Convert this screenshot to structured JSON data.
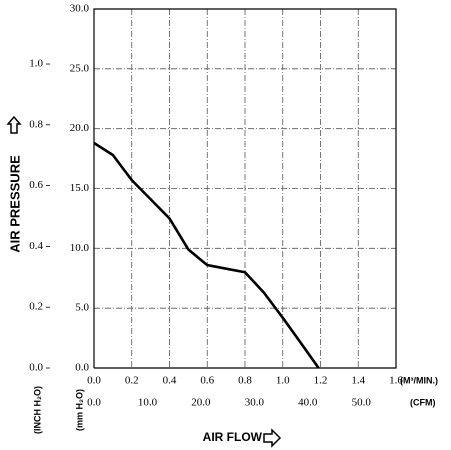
{
  "chart_data": {
    "type": "line",
    "y_label": "AIR PRESSURE",
    "y_unit": "(mm H₂O)",
    "y2_unit": "(INCH H₂O)",
    "x_label": "AIR FLOW",
    "x_unit": "(M³/MIN.)",
    "x2_unit": "(CFM)",
    "x": [
      0,
      0.1,
      0.2,
      0.3,
      0.4,
      0.5,
      0.6,
      0.7,
      0.8,
      0.9,
      1.0,
      1.1,
      1.19
    ],
    "values": [
      18.8,
      17.8,
      15.7,
      14.1,
      12.5,
      9.9,
      8.6,
      8.3,
      8.0,
      6.3,
      4.2,
      2.0,
      0
    ],
    "color": "#000000",
    "grid": true,
    "xlim": [
      0,
      1.6
    ],
    "xticks": [
      {
        "value": 0,
        "label": "0.0"
      },
      {
        "value": 0.2,
        "label": "0.2"
      },
      {
        "value": 0.4,
        "label": "0.4"
      },
      {
        "value": 0.6,
        "label": "0.6"
      },
      {
        "value": 0.8,
        "label": "0.8"
      },
      {
        "value": 1.0,
        "label": "1.0"
      },
      {
        "value": 1.2,
        "label": "1.2"
      },
      {
        "value": 1.4,
        "label": "1.4"
      },
      {
        "value": 1.6,
        "label": "1.6"
      }
    ],
    "x2lim": [
      0,
      56.5
    ],
    "x2ticks": [
      {
        "value": 0,
        "label": "0.0"
      },
      {
        "value": 10,
        "label": "10.0"
      },
      {
        "value": 20,
        "label": "20.0"
      },
      {
        "value": 30,
        "label": "30.0"
      },
      {
        "value": 40,
        "label": "40.0"
      },
      {
        "value": 50,
        "label": "50.0"
      }
    ],
    "ylim": [
      0,
      30
    ],
    "yticks": [
      {
        "value": 0,
        "label": "0.0"
      },
      {
        "value": 5,
        "label": "5.0"
      },
      {
        "value": 10,
        "label": "10.0"
      },
      {
        "value": 15,
        "label": "15.0"
      },
      {
        "value": 20,
        "label": "20.0"
      },
      {
        "value": 25,
        "label": "25.0"
      },
      {
        "value": 30,
        "label": "30.0"
      }
    ],
    "y2lim": [
      0,
      1.181
    ],
    "y2ticks": [
      {
        "value": 0,
        "label": "0.0"
      },
      {
        "value": 0.2,
        "label": "0.2"
      },
      {
        "value": 0.4,
        "label": "0.4"
      },
      {
        "value": 0.6,
        "label": "0.6"
      },
      {
        "value": 0.8,
        "label": "0.8"
      },
      {
        "value": 1.0,
        "label": "1.0"
      }
    ]
  }
}
